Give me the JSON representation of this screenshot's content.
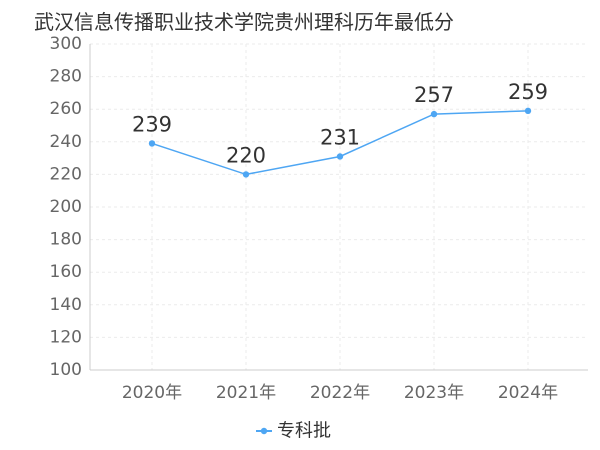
{
  "chart_data": {
    "type": "line",
    "title": "武汉信息传播职业技术学院贵州理科历年最低分",
    "categories": [
      "2020年",
      "2021年",
      "2022年",
      "2023年",
      "2024年"
    ],
    "series": [
      {
        "name": "专科批",
        "values": [
          239,
          220,
          231,
          257,
          259
        ],
        "color": "#4ea6f3"
      }
    ],
    "ylim": [
      100,
      300
    ],
    "yticks": [
      100,
      120,
      140,
      160,
      180,
      200,
      220,
      240,
      260,
      280,
      300
    ],
    "grid": true,
    "legend": "bottom-center"
  }
}
